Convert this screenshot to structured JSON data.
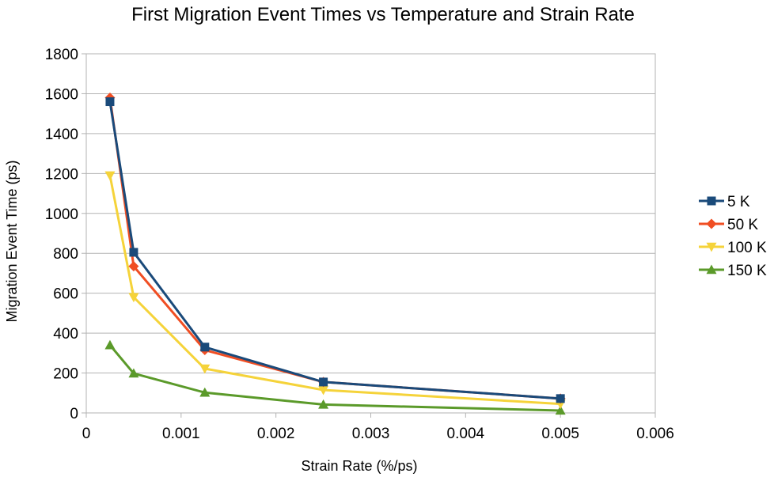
{
  "chart_data": {
    "type": "line",
    "title": "First Migration Event Times vs Temperature and Strain Rate",
    "xlabel": "Strain Rate (%/ps)",
    "ylabel": "Migration Event Time (ps)",
    "xlim": [
      0,
      0.006
    ],
    "ylim": [
      0,
      1800
    ],
    "x_ticks": [
      0,
      0.001,
      0.002,
      0.003,
      0.004,
      0.005,
      0.006
    ],
    "x_tick_labels": [
      "0",
      "0.001",
      "0.002",
      "0.003",
      "0.004",
      "0.005",
      "0.006"
    ],
    "y_ticks": [
      0,
      200,
      400,
      600,
      800,
      1000,
      1200,
      1400,
      1600,
      1800
    ],
    "y_tick_labels": [
      "0",
      "200",
      "400",
      "600",
      "800",
      "1000",
      "1200",
      "1400",
      "1600",
      "1800"
    ],
    "grid": "horizontal",
    "legend_position": "right",
    "x": [
      0.00025,
      0.0005,
      0.00125,
      0.0025,
      0.005
    ],
    "series": [
      {
        "name": "5 K",
        "values": [
          1560,
          805,
          330,
          155,
          72
        ],
        "color": "#1a4a7a",
        "marker": "square"
      },
      {
        "name": "50 K",
        "values": [
          1580,
          735,
          315,
          155,
          72
        ],
        "color": "#f04e23",
        "marker": "diamond"
      },
      {
        "name": "100 K",
        "values": [
          1190,
          580,
          222,
          115,
          45
        ],
        "color": "#f5d33a",
        "marker": "triangle-down"
      },
      {
        "name": "150 K",
        "values": [
          340,
          198,
          102,
          42,
          12
        ],
        "color": "#5b9a2a",
        "marker": "triangle-up"
      }
    ]
  }
}
